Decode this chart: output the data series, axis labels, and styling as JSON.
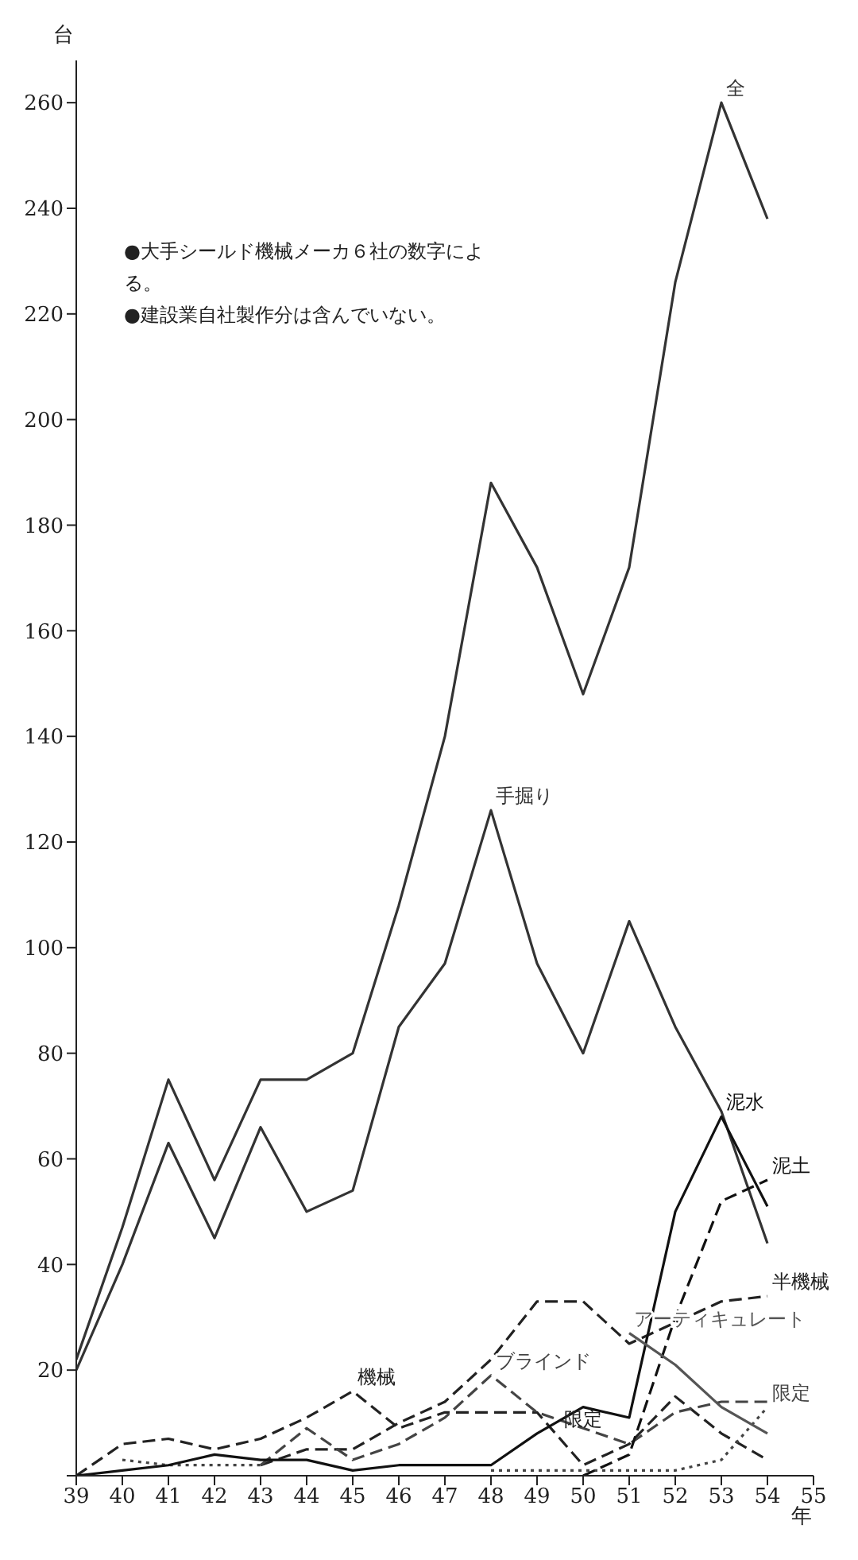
{
  "chart_data": {
    "type": "line",
    "ylabel": "台",
    "xlabel": "年",
    "categories": [
      "39",
      "40",
      "41",
      "42",
      "43",
      "44",
      "45",
      "46",
      "47",
      "48",
      "49",
      "50",
      "51",
      "52",
      "53",
      "54",
      "55"
    ],
    "ylim": [
      0,
      268
    ],
    "yticks": [
      {
        "value": 0,
        "label": null
      },
      20,
      40,
      60,
      80,
      100,
      120,
      140,
      160,
      180,
      200,
      220,
      240,
      260
    ],
    "marker": "none",
    "annotations": [
      "●大手シールド機械メーカ６社の数字による。",
      "●建設業自社製作分は含んでいない。",
      {
        "text": "限定",
        "x": "50",
        "y": 1
      }
    ],
    "series": [
      {
        "name": "全",
        "color": "#333333",
        "line_style": "solid",
        "values": [
          22,
          47,
          75,
          56,
          75,
          75,
          80,
          108,
          140,
          188,
          172,
          148,
          172,
          226,
          260,
          238,
          null
        ]
      },
      {
        "name": "手掘り",
        "color": "#333333",
        "line_style": "solid",
        "values": [
          20,
          40,
          63,
          45,
          66,
          50,
          54,
          85,
          97,
          126,
          97,
          80,
          105,
          85,
          69,
          44,
          null
        ]
      },
      {
        "name": "機械",
        "color": "#222222",
        "line_style": "dashed",
        "values": [
          0,
          6,
          7,
          5,
          7,
          11,
          16,
          9,
          12,
          12,
          12,
          2,
          6,
          15,
          8,
          3,
          null
        ]
      },
      {
        "name": "半機械",
        "color": "#222222",
        "line_style": "dashed",
        "values": [
          null,
          null,
          null,
          null,
          2,
          5,
          5,
          10,
          14,
          22,
          33,
          33,
          25,
          29,
          33,
          34,
          null
        ]
      },
      {
        "name": "ブラインド",
        "color": "#444444",
        "line_style": "dashed",
        "values": [
          null,
          null,
          null,
          null,
          2,
          9,
          3,
          6,
          11,
          19,
          12,
          9,
          6,
          12,
          14,
          14,
          null
        ]
      },
      {
        "name": "限定",
        "color": "#444444",
        "line_style": "dotted",
        "values": [
          null,
          3,
          2,
          2,
          2,
          null,
          null,
          null,
          null,
          1,
          1,
          1,
          1,
          1,
          3,
          13,
          null
        ]
      },
      {
        "name": "泥水",
        "color": "#111111",
        "line_style": "solid",
        "values": [
          0,
          1,
          2,
          4,
          3,
          3,
          1,
          2,
          2,
          2,
          8,
          13,
          11,
          50,
          68,
          51,
          null
        ]
      },
      {
        "name": "泥土",
        "color": "#111111",
        "line_style": "dashed",
        "values": [
          null,
          null,
          null,
          null,
          null,
          null,
          null,
          null,
          null,
          null,
          null,
          0,
          4,
          30,
          52,
          56,
          null
        ]
      },
      {
        "name": "アーティキュレート",
        "color": "#555555",
        "line_style": "solid",
        "values": [
          null,
          null,
          null,
          null,
          null,
          null,
          null,
          null,
          null,
          null,
          null,
          null,
          27,
          21,
          13,
          8,
          null
        ]
      }
    ]
  }
}
